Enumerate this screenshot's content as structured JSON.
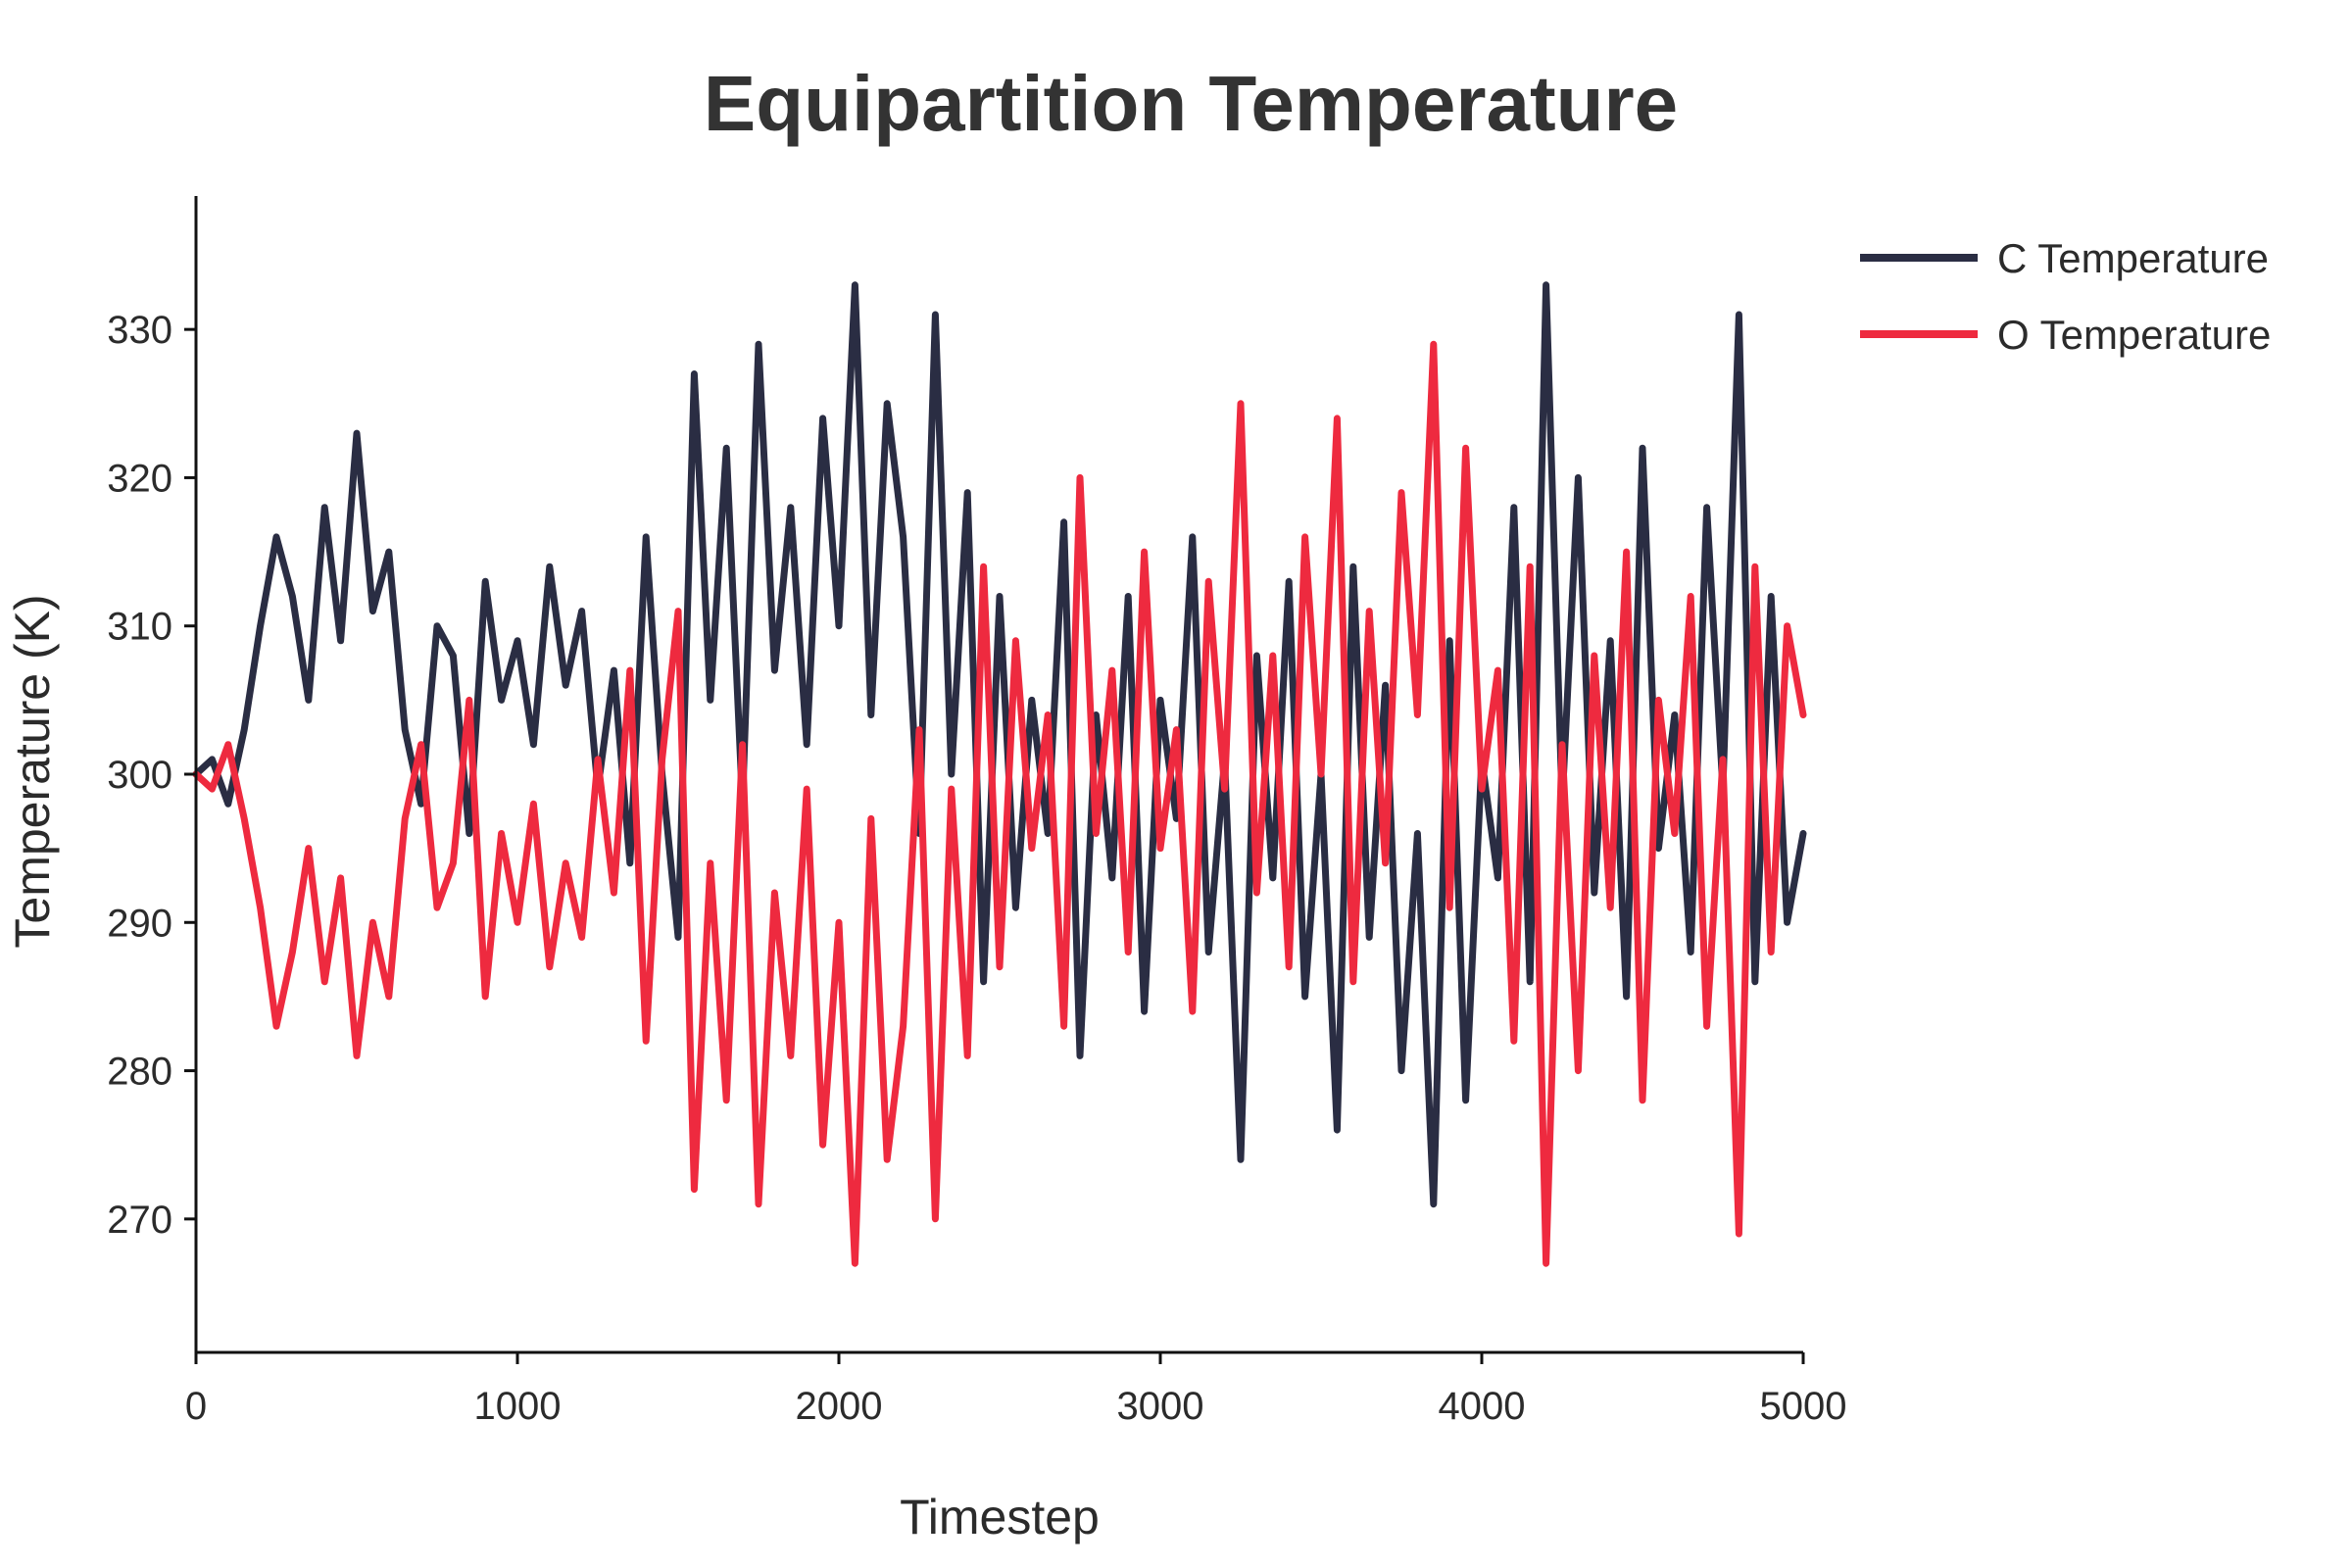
{
  "chart_data": {
    "type": "line",
    "title": "Equipartition Temperature",
    "xlabel": "Timestep",
    "ylabel": "Temperature (K)",
    "xlim": [
      0,
      5000
    ],
    "ylim": [
      261,
      339
    ],
    "x_ticks": [
      0,
      1000,
      2000,
      3000,
      4000,
      5000
    ],
    "y_ticks": [
      270,
      280,
      290,
      300,
      310,
      320,
      330
    ],
    "grid": false,
    "legend_position": "top-right",
    "x": [
      0,
      50,
      100,
      150,
      200,
      250,
      300,
      350,
      400,
      450,
      500,
      550,
      600,
      650,
      700,
      750,
      800,
      850,
      900,
      950,
      1000,
      1050,
      1100,
      1150,
      1200,
      1250,
      1300,
      1350,
      1400,
      1450,
      1500,
      1550,
      1600,
      1650,
      1700,
      1750,
      1800,
      1850,
      1900,
      1950,
      2000,
      2050,
      2100,
      2150,
      2200,
      2250,
      2300,
      2350,
      2400,
      2450,
      2500,
      2550,
      2600,
      2650,
      2700,
      2750,
      2800,
      2850,
      2900,
      2950,
      3000,
      3050,
      3100,
      3150,
      3200,
      3250,
      3300,
      3350,
      3400,
      3450,
      3500,
      3550,
      3600,
      3650,
      3700,
      3750,
      3800,
      3850,
      3900,
      3950,
      4000,
      4050,
      4100,
      4150,
      4200,
      4250,
      4300,
      4350,
      4400,
      4450,
      4500,
      4550,
      4600,
      4650,
      4700,
      4750,
      4800,
      4850,
      4900,
      4950,
      5000
    ],
    "series": [
      {
        "name": "C Temperature",
        "color": "#2a2d43",
        "values": [
          300,
          301,
          298,
          303,
          310,
          316,
          312,
          305,
          318,
          309,
          323,
          311,
          315,
          303,
          298,
          310,
          308,
          296,
          313,
          305,
          309,
          302,
          314,
          306,
          311,
          299,
          307,
          294,
          316,
          300,
          289,
          327,
          305,
          322,
          298,
          329,
          307,
          318,
          302,
          324,
          310,
          333,
          304,
          325,
          316,
          296,
          331,
          300,
          319,
          286,
          312,
          291,
          305,
          296,
          317,
          281,
          304,
          293,
          312,
          284,
          305,
          297,
          316,
          288,
          301,
          274,
          308,
          293,
          313,
          285,
          300,
          276,
          314,
          289,
          306,
          280,
          296,
          271,
          309,
          278,
          301,
          293,
          318,
          286,
          333,
          298,
          320,
          292,
          309,
          285,
          322,
          295,
          304,
          288,
          318,
          299,
          331,
          286,
          312,
          290,
          296
        ]
      },
      {
        "name": "O Temperature",
        "color": "#ee2a3f",
        "values": [
          300,
          299,
          302,
          297,
          291,
          283,
          288,
          295,
          286,
          293,
          281,
          290,
          285,
          297,
          302,
          291,
          294,
          305,
          285,
          296,
          290,
          298,
          287,
          294,
          289,
          301,
          292,
          307,
          282,
          301,
          311,
          272,
          294,
          278,
          302,
          271,
          292,
          281,
          299,
          275,
          290,
          267,
          297,
          274,
          283,
          303,
          270,
          299,
          281,
          314,
          287,
          309,
          295,
          304,
          283,
          320,
          296,
          307,
          288,
          315,
          295,
          303,
          284,
          313,
          299,
          325,
          292,
          308,
          287,
          316,
          300,
          324,
          286,
          311,
          294,
          319,
          304,
          329,
          291,
          322,
          299,
          307,
          282,
          314,
          267,
          302,
          280,
          308,
          291,
          315,
          278,
          305,
          296,
          312,
          283,
          301,
          269,
          314,
          288,
          310,
          304
        ]
      }
    ]
  }
}
